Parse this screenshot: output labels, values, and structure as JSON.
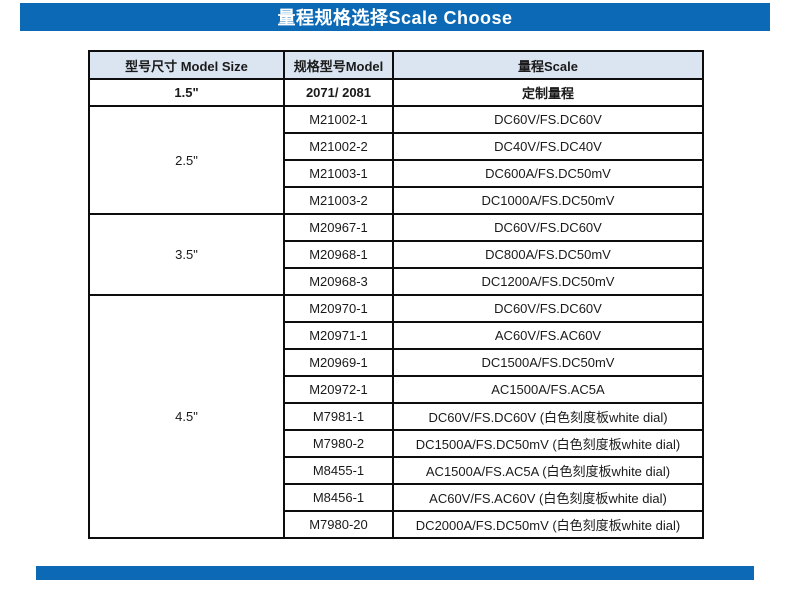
{
  "header": {
    "title": "量程规格选择Scale Choose"
  },
  "table": {
    "columns": [
      {
        "label": "型号尺寸 Model Size"
      },
      {
        "label": "规格型号Model"
      },
      {
        "label": "量程Scale"
      }
    ],
    "groups": [
      {
        "size": "1.5\"",
        "rows": [
          {
            "model": "2071/ 2081",
            "scale": "定制量程",
            "bold": true
          }
        ]
      },
      {
        "size": "2.5\"",
        "rows": [
          {
            "model": "M21002-1",
            "scale": "DC60V/FS.DC60V"
          },
          {
            "model": "M21002-2",
            "scale": "DC40V/FS.DC40V"
          },
          {
            "model": "M21003-1",
            "scale": "DC600A/FS.DC50mV"
          },
          {
            "model": "M21003-2",
            "scale": "DC1000A/FS.DC50mV"
          }
        ]
      },
      {
        "size": "3.5\"",
        "rows": [
          {
            "model": "M20967-1",
            "scale": "DC60V/FS.DC60V"
          },
          {
            "model": "M20968-1",
            "scale": "DC800A/FS.DC50mV"
          },
          {
            "model": "M20968-3",
            "scale": "DC1200A/FS.DC50mV"
          }
        ]
      },
      {
        "size": "4.5\"",
        "rows": [
          {
            "model": "M20970-1",
            "scale": "DC60V/FS.DC60V"
          },
          {
            "model": "M20971-1",
            "scale": "AC60V/FS.AC60V"
          },
          {
            "model": "M20969-1",
            "scale": "DC1500A/FS.DC50mV"
          },
          {
            "model": "M20972-1",
            "scale": "AC1500A/FS.AC5A"
          },
          {
            "model": "M7981-1",
            "scale": "DC60V/FS.DC60V (白色刻度板white dial)"
          },
          {
            "model": "M7980-2",
            "scale": "DC1500A/FS.DC50mV (白色刻度板white dial)"
          },
          {
            "model": "M8455-1",
            "scale": "AC1500A/FS.AC5A (白色刻度板white dial)"
          },
          {
            "model": "M8456-1",
            "scale": "AC60V/FS.AC60V (白色刻度板white dial)"
          },
          {
            "model": "M7980-20",
            "scale": "DC2000A/FS.DC50mV (白色刻度板white dial)"
          }
        ]
      }
    ]
  },
  "colors": {
    "accent_blue": "#0b69b5",
    "header_row_bg": "#dbe5f1",
    "border_black": "#0d0d0d"
  }
}
